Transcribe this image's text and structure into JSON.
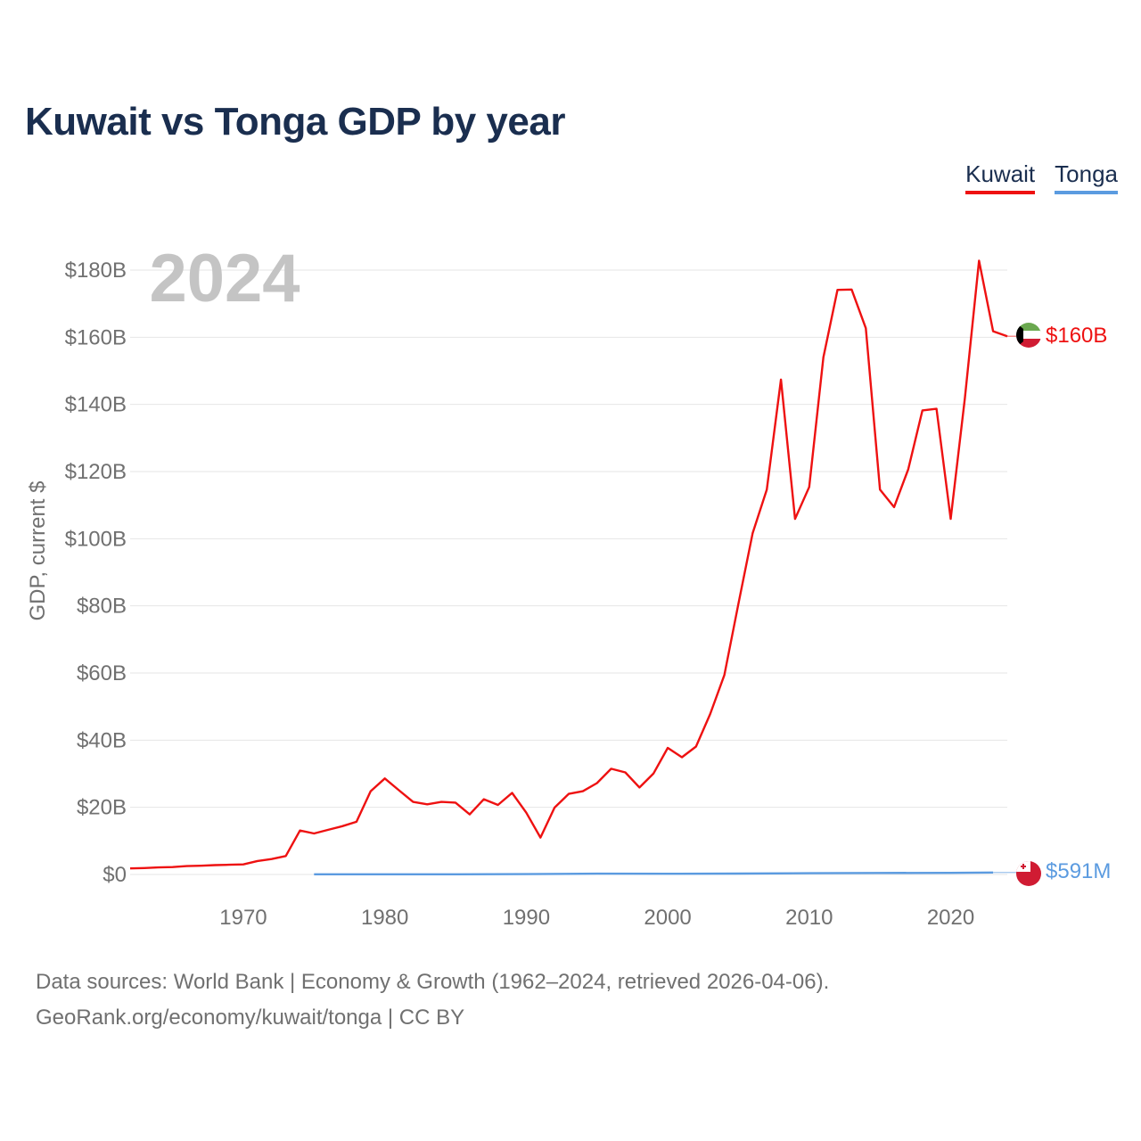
{
  "title": "Kuwait vs Tonga GDP by year",
  "year_label": "2024",
  "legend": [
    {
      "name": "Kuwait",
      "color": "#ee1111"
    },
    {
      "name": "Tonga",
      "color": "#5b9be0"
    }
  ],
  "footer": {
    "line1": "Data sources: World Bank | Economy & Growth (1962–2024, retrieved 2026-04-06).",
    "line2": "GeoRank.org/economy/kuwait/tonga | CC BY"
  },
  "chart_data": {
    "type": "line",
    "title": "Kuwait vs Tonga GDP by year",
    "ylabel": "GDP, current $",
    "xlabel": "",
    "xlim": [
      1962,
      2024
    ],
    "ylim": [
      0,
      180
    ],
    "y_unit": "billions USD",
    "y_ticks": [
      {
        "value": 0,
        "label": "$0"
      },
      {
        "value": 20,
        "label": "$20B"
      },
      {
        "value": 40,
        "label": "$40B"
      },
      {
        "value": 60,
        "label": "$60B"
      },
      {
        "value": 80,
        "label": "$80B"
      },
      {
        "value": 100,
        "label": "$100B"
      },
      {
        "value": 120,
        "label": "$120B"
      },
      {
        "value": 140,
        "label": "$140B"
      },
      {
        "value": 160,
        "label": "$160B"
      },
      {
        "value": 180,
        "label": "$180B"
      }
    ],
    "x_ticks": [
      {
        "value": 1970,
        "label": "1970"
      },
      {
        "value": 1980,
        "label": "1980"
      },
      {
        "value": 1990,
        "label": "1990"
      },
      {
        "value": 2000,
        "label": "2000"
      },
      {
        "value": 2010,
        "label": "2010"
      },
      {
        "value": 2020,
        "label": "2020"
      }
    ],
    "grid": true,
    "series": [
      {
        "name": "Kuwait",
        "color": "#ee1111",
        "end_label": "$160B",
        "x": [
          1962,
          1963,
          1964,
          1965,
          1966,
          1967,
          1968,
          1969,
          1970,
          1971,
          1972,
          1973,
          1974,
          1975,
          1976,
          1977,
          1978,
          1979,
          1980,
          1981,
          1982,
          1983,
          1984,
          1985,
          1986,
          1987,
          1988,
          1989,
          1990,
          1991,
          1992,
          1993,
          1994,
          1995,
          1996,
          1997,
          1998,
          1999,
          2000,
          2001,
          2002,
          2003,
          2004,
          2005,
          2006,
          2007,
          2008,
          2009,
          2010,
          2011,
          2012,
          2013,
          2014,
          2015,
          2016,
          2017,
          2018,
          2019,
          2020,
          2021,
          2022,
          2023,
          2024
        ],
        "y": [
          1.8,
          1.9,
          2.1,
          2.2,
          2.5,
          2.6,
          2.8,
          2.9,
          3.0,
          4.0,
          4.6,
          5.5,
          13.1,
          12.2,
          13.3,
          14.4,
          15.7,
          24.8,
          28.6,
          25.1,
          21.6,
          20.9,
          21.6,
          21.4,
          17.9,
          22.4,
          20.7,
          24.3,
          18.4,
          11.0,
          19.9,
          24.0,
          24.8,
          27.2,
          31.5,
          30.4,
          25.9,
          30.1,
          37.7,
          34.9,
          38.1,
          47.8,
          59.4,
          80.8,
          101.6,
          114.6,
          147.4,
          105.9,
          115.4,
          154.0,
          174.1,
          174.2,
          162.7,
          114.6,
          109.4,
          120.7,
          138.2,
          138.7,
          105.9,
          141.8,
          182.8,
          161.8,
          160.3
        ]
      },
      {
        "name": "Tonga",
        "color": "#5b9be0",
        "end_label": "$591M",
        "x": [
          1975,
          1980,
          1985,
          1990,
          1995,
          2000,
          2005,
          2010,
          2015,
          2020,
          2023
        ],
        "y": [
          0.04,
          0.06,
          0.05,
          0.11,
          0.23,
          0.2,
          0.26,
          0.37,
          0.44,
          0.49,
          0.59
        ]
      }
    ]
  }
}
